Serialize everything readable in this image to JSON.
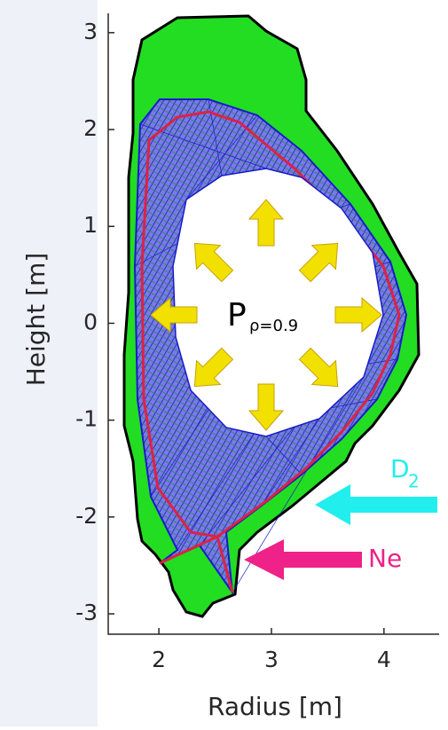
{
  "chart_data": {
    "type": "mesh",
    "x_label": "Radius [m]",
    "y_label": "Height [m]",
    "xlim": [
      1.55,
      4.49
    ],
    "ylim": [
      -3.21,
      3.2
    ],
    "xticks": [
      2,
      3,
      4
    ],
    "yticks": [
      -3,
      -2,
      -1,
      0,
      1,
      2,
      3
    ],
    "annotations": {
      "power": "P",
      "power_subscript": "ρ=0.9",
      "d2": "D",
      "d2_subscript": "2",
      "ne": "Ne"
    },
    "colors": {
      "wall": "#22dd22",
      "mesh": "#1a1acc",
      "separatrix": "#dd2244",
      "power_arrows": "#f2e000",
      "d2": "#22eeee",
      "ne": "#ee2288"
    }
  }
}
